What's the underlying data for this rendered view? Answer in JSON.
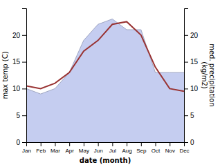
{
  "chart_data": {
    "type": "line",
    "categories": [
      "Jan",
      "Feb",
      "Mar",
      "Apr",
      "May",
      "Jun",
      "Jul",
      "Aug",
      "Sep",
      "Oct",
      "Nov",
      "Dec"
    ],
    "xlabel": "date (month)",
    "ylabel": "max temp (C)",
    "y2label": "med. precipitation\n(kg/m2)",
    "series": [
      {
        "type": "line",
        "color": "#993333",
        "values": [
          10.5,
          10.0,
          11.0,
          13.0,
          17.0,
          19.0,
          22.0,
          22.5,
          20.0,
          14.0,
          10.0,
          9.5
        ]
      },
      {
        "type": "area",
        "axis": "y2",
        "color": "#c5cdf0",
        "values": [
          10.0,
          9.0,
          10.0,
          13.0,
          19.0,
          22.0,
          23.0,
          21.0,
          21.0,
          13.0,
          13.0,
          13.0
        ]
      }
    ],
    "ylim": [
      0,
      25
    ],
    "yticks": [
      0,
      5,
      10,
      15,
      20
    ],
    "y2lim": [
      0,
      25
    ],
    "y2ticks": [
      0,
      5,
      10,
      15,
      20
    ]
  }
}
